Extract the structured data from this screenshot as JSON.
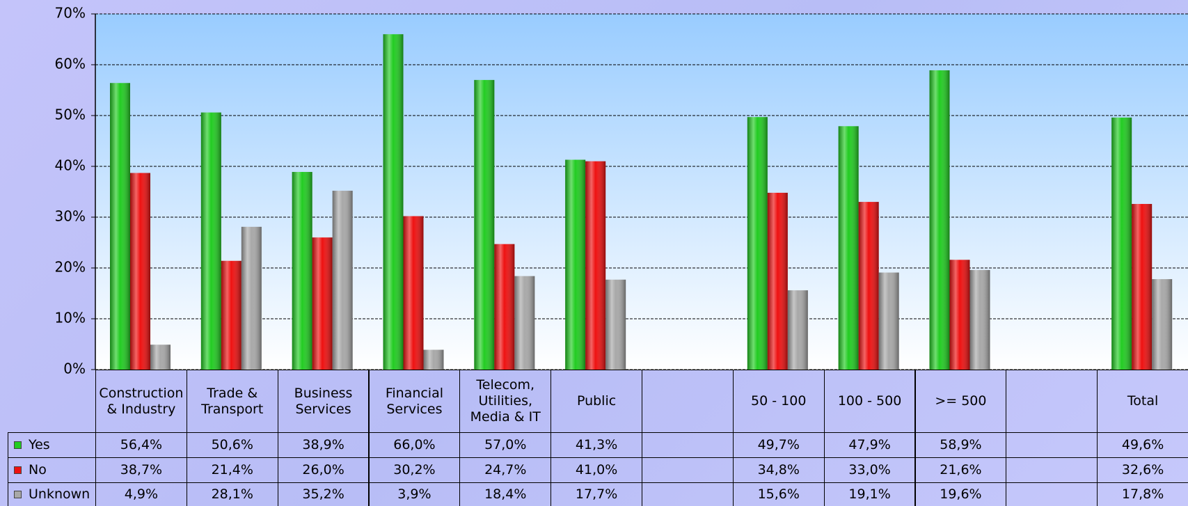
{
  "chart_data": {
    "type": "bar",
    "categories": [
      "Construction & Industry",
      "Trade & Transport",
      "Business Services",
      "Financial Services",
      "Telecom, Utilities, Media & IT",
      "Public",
      null,
      "50 - 100",
      "100 - 500",
      ">= 500",
      null,
      "Total"
    ],
    "series": [
      {
        "name": "Yes",
        "color": "#22cc22",
        "values": [
          56.4,
          50.6,
          38.9,
          66.0,
          57.0,
          41.3,
          null,
          49.7,
          47.9,
          58.9,
          null,
          49.6
        ],
        "value_labels": [
          "56,4%",
          "50,6%",
          "38,9%",
          "66,0%",
          "57,0%",
          "41,3%",
          null,
          "49,7%",
          "47,9%",
          "58,9%",
          null,
          "49,6%"
        ]
      },
      {
        "name": "No",
        "color": "#ee1111",
        "values": [
          38.7,
          21.4,
          26.0,
          30.2,
          24.7,
          41.0,
          null,
          34.8,
          33.0,
          21.6,
          null,
          32.6
        ],
        "value_labels": [
          "38,7%",
          "21,4%",
          "26,0%",
          "30,2%",
          "24,7%",
          "41,0%",
          null,
          "34,8%",
          "33,0%",
          "21,6%",
          null,
          "32,6%"
        ]
      },
      {
        "name": "Unknown",
        "color": "#a8a8a8",
        "values": [
          4.9,
          28.1,
          35.2,
          3.9,
          18.4,
          17.7,
          null,
          15.6,
          19.1,
          19.6,
          null,
          17.8
        ],
        "value_labels": [
          "4,9%",
          "28,1%",
          "35,2%",
          "3,9%",
          "18,4%",
          "17,7%",
          null,
          "15,6%",
          "19,1%",
          "19,6%",
          null,
          "17,8%"
        ]
      }
    ],
    "ylim": [
      0,
      70
    ],
    "yticks": [
      {
        "value": 0,
        "label": "0%"
      },
      {
        "value": 10,
        "label": "10%"
      },
      {
        "value": 20,
        "label": "20%"
      },
      {
        "value": 30,
        "label": "30%"
      },
      {
        "value": 40,
        "label": "40%"
      },
      {
        "value": 50,
        "label": "50%"
      },
      {
        "value": 60,
        "label": "60%"
      },
      {
        "value": 70,
        "label": "70%"
      }
    ],
    "grid": true
  }
}
